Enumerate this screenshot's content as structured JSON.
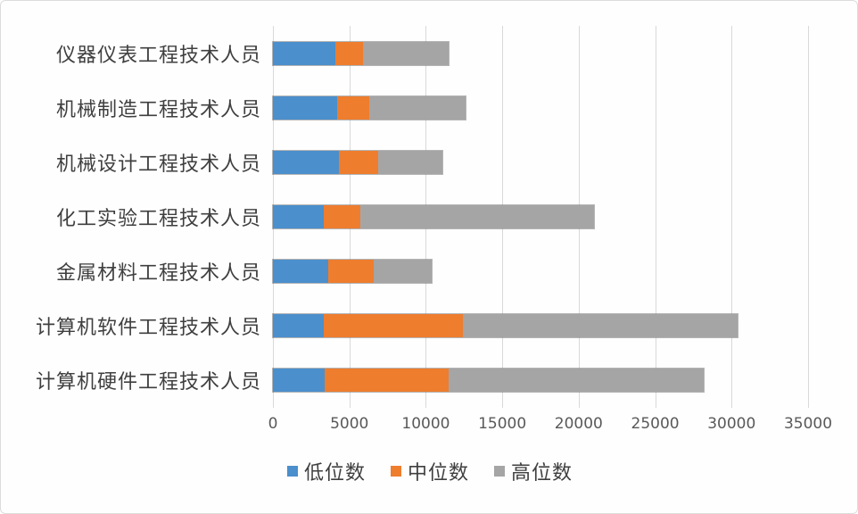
{
  "chart_data": {
    "type": "bar",
    "orientation": "horizontal",
    "stacked": true,
    "grid": true,
    "categories": [
      "仪器仪表工程技术人员",
      "机械制造工程技术人员",
      "机械设计工程技术人员",
      "化工实验工程技术人员",
      "金属材料工程技术人员",
      "计算机软件工程技术人员",
      "计算机硬件工程技术人员"
    ],
    "series": [
      {
        "name": "低位数",
        "key": "low",
        "color": "#4b8fcc",
        "values": [
          4100,
          4200,
          4300,
          3300,
          3600,
          3300,
          3400
        ]
      },
      {
        "name": "中位数",
        "key": "median",
        "color": "#ee7d2e",
        "values": [
          1800,
          2100,
          2600,
          2400,
          3000,
          9100,
          8100
        ]
      },
      {
        "name": "高位数",
        "key": "high",
        "color": "#a5a5a5",
        "values": [
          5600,
          6300,
          4200,
          15300,
          3800,
          18000,
          16700
        ]
      }
    ],
    "x_axis": {
      "min": 0,
      "max": 35000,
      "tick_step": 5000,
      "ticks": [
        0,
        5000,
        10000,
        15000,
        20000,
        25000,
        30000,
        35000
      ]
    },
    "legend": {
      "position": "bottom",
      "items": [
        "低位数",
        "中位数",
        "高位数"
      ]
    },
    "style": {
      "gridline_color": "#d9d9d9",
      "axis_text_color": "#595959",
      "label_text_color": "#3f3f3f"
    }
  }
}
